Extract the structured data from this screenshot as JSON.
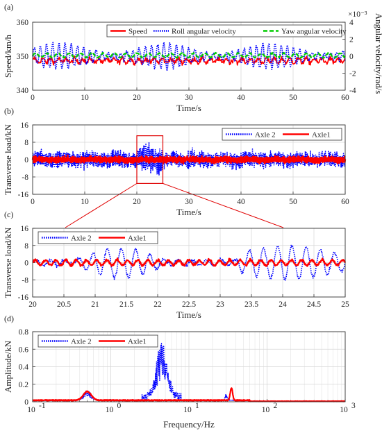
{
  "chart_data": [
    {
      "panel": "(a)",
      "type": "line",
      "xlabel": "Time/s",
      "ylabel": "Speed/km/h",
      "y2label": "Angular velocity/rad/s",
      "y2exponent": "×10⁻³",
      "xlim": [
        0,
        60
      ],
      "ylim": [
        340,
        360
      ],
      "y2lim": [
        -4,
        4
      ],
      "xticks": [
        "0",
        "10",
        "20",
        "30",
        "40",
        "50",
        "60"
      ],
      "yticks": [
        "340",
        "350",
        "360"
      ],
      "y2ticks": [
        "-4",
        "-2",
        "0",
        "2",
        "4"
      ],
      "legend": "top-right",
      "grid": true,
      "series": [
        {
          "name": "Speed",
          "color": "#ff0000",
          "style": "solid",
          "axis": "left",
          "mean": 348.7,
          "amplitude": 1.5
        },
        {
          "name": "Roll angular velocity",
          "color": "#0000ff",
          "style": "dotted",
          "axis": "right",
          "mean": 0,
          "amplitude": 1.5
        },
        {
          "name": "Yaw angular velocity",
          "color": "#00cc00",
          "style": "dashed",
          "axis": "right",
          "mean": 0.1,
          "amplitude": 0.25
        }
      ]
    },
    {
      "panel": "(b)",
      "type": "line",
      "xlabel": "Time/s",
      "ylabel": "Transverse load/kN",
      "xlim": [
        0,
        60
      ],
      "ylim": [
        -16,
        16
      ],
      "xticks": [
        "0",
        "10",
        "20",
        "30",
        "40",
        "50",
        "60"
      ],
      "yticks": [
        "-16",
        "-8",
        "0",
        "8",
        "16"
      ],
      "y_minor_ticks": [
        "-4",
        "4"
      ],
      "legend": "top-right",
      "grid": true,
      "highlight_box": {
        "x": [
          20,
          25
        ],
        "y": [
          -11,
          11
        ]
      },
      "series": [
        {
          "name": "Axle 2",
          "color": "#0000ff",
          "style": "dotted",
          "amplitude": 4,
          "peak": 9
        },
        {
          "name": "Axle1",
          "color": "#ff0000",
          "style": "solid",
          "amplitude": 1.5
        }
      ]
    },
    {
      "panel": "(c)",
      "type": "line",
      "xlabel": "Time/s",
      "ylabel": "Transverse load/kN",
      "xlim": [
        20,
        25
      ],
      "ylim": [
        -16,
        16
      ],
      "xticks": [
        "20",
        "20.5",
        "21",
        "21.5",
        "22",
        "22.5",
        "23",
        "23.5",
        "24",
        "24.5",
        "25"
      ],
      "yticks": [
        "-16",
        "-8",
        "0",
        "8",
        "16"
      ],
      "y_minor_ticks": [
        "-4",
        "4"
      ],
      "legend": "top-left",
      "grid": true,
      "series": [
        {
          "name": "Axle 2",
          "color": "#0000ff",
          "style": "dotted",
          "amplitude_20_22": 7,
          "amplitude_23_25": 8
        },
        {
          "name": "Axle1",
          "color": "#ff0000",
          "style": "solid",
          "amplitude": 1.5
        }
      ]
    },
    {
      "panel": "(d)",
      "type": "line",
      "xlabel": "Frequency/Hz",
      "ylabel": "Amplitude/kN",
      "xscale": "log",
      "xlim": [
        0.1,
        1000
      ],
      "ylim": [
        0,
        0.8
      ],
      "xticks": [
        "10",
        "10",
        "10",
        "10",
        "10"
      ],
      "xtick_exponents": [
        "-1",
        "0",
        "1",
        "2",
        "3"
      ],
      "yticks": [
        "0",
        "0.2",
        "0.4",
        "0.6",
        "0.8"
      ],
      "legend": "top-left",
      "grid": true,
      "series": [
        {
          "name": "Axle 2",
          "color": "#0000ff",
          "style": "dotted",
          "peaks": [
            {
              "f": 0.5,
              "a": 0.12
            },
            {
              "f": 4.5,
              "a": 0.62
            },
            {
              "f": 30,
              "a": 0.07
            }
          ]
        },
        {
          "name": "Axle1",
          "color": "#ff0000",
          "style": "solid",
          "peaks": [
            {
              "f": 0.5,
              "a": 0.1
            },
            {
              "f": 35,
              "a": 0.14
            }
          ]
        }
      ]
    }
  ]
}
